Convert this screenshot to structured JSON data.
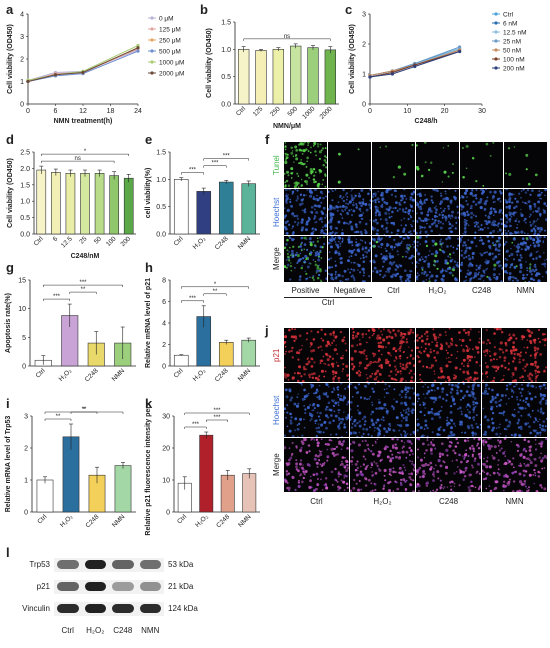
{
  "chart_data": [
    {
      "id": "a",
      "type": "line",
      "letter": "a",
      "xlabel": "NMN treatment(h)",
      "ylabel": "Cell viability (OD450)",
      "xlim": [
        0,
        24
      ],
      "ylim": [
        0,
        4
      ],
      "xticks": [
        "0",
        "6",
        "12",
        "18",
        "24"
      ],
      "yticks": [
        "0",
        "1",
        "2",
        "3",
        "4"
      ],
      "x": [
        0,
        6,
        12,
        24
      ],
      "legend_position": "right",
      "series": [
        {
          "name": "0 μM",
          "color": "#b7b0d9",
          "values": [
            1.05,
            1.4,
            1.45,
            2.4
          ]
        },
        {
          "name": "125 μM",
          "color": "#e3a6a3",
          "values": [
            1.0,
            1.35,
            1.4,
            2.45
          ]
        },
        {
          "name": "250 μM",
          "color": "#e7a65f",
          "values": [
            1.05,
            1.3,
            1.4,
            2.5
          ]
        },
        {
          "name": "500 μM",
          "color": "#6f8fd1",
          "values": [
            1.0,
            1.25,
            1.35,
            2.35
          ]
        },
        {
          "name": "1000 μM",
          "color": "#a9cc76",
          "values": [
            1.05,
            1.3,
            1.45,
            2.6
          ]
        },
        {
          "name": "2000 μM",
          "color": "#6b4a3a",
          "values": [
            1.0,
            1.3,
            1.4,
            2.5
          ]
        }
      ]
    },
    {
      "id": "b",
      "type": "bar",
      "letter": "b",
      "xlabel": "NMN/μM",
      "ylabel": "Cell viability (OD450)",
      "categories": [
        "Ctrl",
        "125",
        "250",
        "500",
        "1000",
        "2000"
      ],
      "values": [
        1.0,
        0.98,
        1.0,
        1.06,
        1.03,
        0.99
      ],
      "errors": [
        0.05,
        0.02,
        0.03,
        0.04,
        0.04,
        0.06
      ],
      "colors": [
        "#f7f3c9",
        "#f5efb5",
        "#ecf0a8",
        "#c7e3a0",
        "#9ccf7c",
        "#6fb34f"
      ],
      "ylim": [
        0,
        1.5
      ],
      "yticks": [
        "0.0",
        "0.5",
        "1.0",
        "1.5"
      ],
      "significance": [
        {
          "from": 0,
          "to": 5,
          "label": "ns"
        }
      ]
    },
    {
      "id": "c",
      "type": "line",
      "letter": "c",
      "xlabel": "C248/h",
      "ylabel": "Cell viability (OD450)",
      "xlim": [
        0,
        30
      ],
      "ylim": [
        0,
        3
      ],
      "xticks": [
        "0",
        "10",
        "20",
        "30"
      ],
      "yticks": [
        "0",
        "1",
        "2",
        "3"
      ],
      "x": [
        0,
        6,
        12,
        24
      ],
      "legend_position": "right",
      "series": [
        {
          "name": "Ctrl",
          "color": "#4aa3d8",
          "values": [
            0.95,
            1.1,
            1.35,
            1.85
          ]
        },
        {
          "name": "6 nM",
          "color": "#2a6fb0",
          "values": [
            0.9,
            1.05,
            1.3,
            1.8
          ]
        },
        {
          "name": "12.5 nM",
          "color": "#8bbde0",
          "values": [
            0.9,
            1.05,
            1.3,
            1.85
          ]
        },
        {
          "name": "25 nM",
          "color": "#6a9bc9",
          "values": [
            0.95,
            1.1,
            1.35,
            1.9
          ]
        },
        {
          "name": "50 nM",
          "color": "#c38a5d",
          "values": [
            0.95,
            1.1,
            1.3,
            1.8
          ]
        },
        {
          "name": "100 nM",
          "color": "#7b3f2a",
          "values": [
            0.9,
            1.05,
            1.3,
            1.75
          ]
        },
        {
          "name": "200 nM",
          "color": "#2f3f7a",
          "values": [
            0.9,
            1.0,
            1.25,
            1.75
          ]
        }
      ]
    },
    {
      "id": "d",
      "type": "bar",
      "letter": "d",
      "xlabel": "C248/nM",
      "ylabel": "Cell viability (OD450)",
      "categories": [
        "Ctrl",
        "6",
        "12.5",
        "25",
        "50",
        "100",
        "200"
      ],
      "values": [
        1.95,
        1.88,
        1.85,
        1.85,
        1.85,
        1.78,
        1.7
      ],
      "errors": [
        0.12,
        0.1,
        0.1,
        0.1,
        0.1,
        0.12,
        0.12
      ],
      "colors": [
        "#f7f3c9",
        "#f2efb4",
        "#e9eea6",
        "#d5e8a0",
        "#b8dc8a",
        "#8fc76a",
        "#5aa847"
      ],
      "ylim": [
        0,
        2.5
      ],
      "yticks": [
        "0.0",
        "0.5",
        "1.0",
        "1.5",
        "2.0",
        "2.5"
      ],
      "significance": [
        {
          "from": 0,
          "to": 6,
          "label": "*"
        },
        {
          "from": 0,
          "to": 5,
          "label": "ns"
        }
      ]
    },
    {
      "id": "e",
      "type": "bar",
      "letter": "e",
      "xlabel": "",
      "ylabel": "cell viability(%)",
      "categories": [
        "Ctrl",
        "H₂O₂",
        "C248",
        "NMN"
      ],
      "values": [
        1.0,
        0.78,
        0.95,
        0.92
      ],
      "errors": [
        0.03,
        0.06,
        0.03,
        0.05
      ],
      "colors": [
        "#ffffff",
        "#2f3f82",
        "#2f7f96",
        "#5bb39a"
      ],
      "ylim": [
        0,
        1.5
      ],
      "yticks": [
        "0.0",
        "0.5",
        "1.0",
        "1.5"
      ],
      "significance": [
        {
          "from": 0,
          "to": 1,
          "label": "***"
        },
        {
          "from": 1,
          "to": 2,
          "label": "***"
        },
        {
          "from": 1,
          "to": 3,
          "label": "***"
        }
      ]
    },
    {
      "id": "g",
      "type": "bar",
      "letter": "g",
      "xlabel": "",
      "ylabel": "Apoptosis rate(%)",
      "categories": [
        "Ctrl",
        "H₂O₂",
        "C248",
        "NMN"
      ],
      "values": [
        1.0,
        8.8,
        4.0,
        4.0
      ],
      "errors": [
        0.8,
        2.0,
        2.0,
        2.8
      ],
      "colors": [
        "#ffffff",
        "#c9a2d6",
        "#e8d96a",
        "#9ccf7c"
      ],
      "ylim": [
        0,
        15
      ],
      "yticks": [
        "0",
        "5",
        "10",
        "15"
      ],
      "significance": [
        {
          "from": 0,
          "to": 1,
          "label": "***"
        },
        {
          "from": 1,
          "to": 2,
          "label": "**"
        },
        {
          "from": 0,
          "to": 3,
          "label": "***"
        }
      ]
    },
    {
      "id": "h",
      "type": "bar",
      "letter": "h",
      "xlabel": "",
      "ylabel": "Relative mRNA level of p21",
      "categories": [
        "Ctrl",
        "H₂O₂",
        "C248",
        "NMN"
      ],
      "values": [
        1.0,
        4.6,
        2.2,
        2.4
      ],
      "errors": [
        0.05,
        1.0,
        0.2,
        0.2
      ],
      "colors": [
        "#ffffff",
        "#2a6f9e",
        "#f2d05a",
        "#a3d7a5"
      ],
      "ylim": [
        0,
        8
      ],
      "yticks": [
        "0",
        "2",
        "4",
        "6",
        "8"
      ],
      "significance": [
        {
          "from": 0,
          "to": 1,
          "label": "***"
        },
        {
          "from": 1,
          "to": 2,
          "label": "**"
        },
        {
          "from": 0,
          "to": 3,
          "label": "*"
        }
      ]
    },
    {
      "id": "i",
      "type": "bar",
      "letter": "i",
      "xlabel": "",
      "ylabel": "Relative mRNA level of Trp53",
      "categories": [
        "Ctrl",
        "H₂O₂",
        "C248",
        "NMN"
      ],
      "values": [
        1.0,
        2.35,
        1.15,
        1.45
      ],
      "errors": [
        0.1,
        0.4,
        0.25,
        0.1
      ],
      "colors": [
        "#ffffff",
        "#2a6f9e",
        "#f2d05a",
        "#a3d7a5"
      ],
      "ylim": [
        0,
        3
      ],
      "yticks": [
        "0",
        "1",
        "2",
        "3"
      ],
      "significance": [
        {
          "from": 0,
          "to": 1,
          "label": "**"
        },
        {
          "from": 1,
          "to": 2,
          "label": "**"
        },
        {
          "from": 0,
          "to": 3,
          "label": "*"
        }
      ]
    },
    {
      "id": "k",
      "type": "bar",
      "letter": "k",
      "xlabel": "",
      "ylabel": "Relative p21 fluorescence intensity per cell",
      "categories": [
        "Ctrl",
        "H₂O₂",
        "C248",
        "NMN"
      ],
      "values": [
        9.0,
        24.0,
        11.5,
        12.0
      ],
      "errors": [
        2.0,
        1.0,
        1.5,
        1.5
      ],
      "colors": [
        "#ffffff",
        "#b0202a",
        "#e0a08a",
        "#e6c3b6"
      ],
      "ylim": [
        0,
        30
      ],
      "yticks": [
        "0",
        "10",
        "20",
        "30"
      ],
      "significance": [
        {
          "from": 0,
          "to": 1,
          "label": "***"
        },
        {
          "from": 1,
          "to": 2,
          "label": "***"
        },
        {
          "from": 0,
          "to": 3,
          "label": "***"
        }
      ]
    }
  ],
  "panel_f": {
    "letter": "f",
    "rows": [
      "Tunel",
      "Hoechst",
      "Merge"
    ],
    "row_colors": [
      "#3fb54a",
      "#3b6ed4",
      "#222222"
    ],
    "columns": [
      "Positive",
      "Negative",
      "Ctrl",
      "H₂O₂",
      "C248",
      "NMN"
    ],
    "group_label": "Ctrl"
  },
  "panel_j": {
    "letter": "j",
    "rows": [
      "p21",
      "Hoechst",
      "Merge"
    ],
    "row_colors": [
      "#c0282f",
      "#3b6ed4",
      "#222222"
    ],
    "columns": [
      "Ctrl",
      "H₂O₂",
      "C248",
      "NMN"
    ]
  },
  "panel_l": {
    "letter": "l",
    "proteins": [
      "Trp53",
      "p21",
      "Vinculin"
    ],
    "sizes": [
      "53 kDa",
      "21 kDa",
      "124 kDa"
    ],
    "lanes": [
      "Ctrl",
      "H₂O₂",
      "C248",
      "NMN"
    ],
    "intensities": [
      [
        0.55,
        0.9,
        0.6,
        0.55
      ],
      [
        0.6,
        0.9,
        0.35,
        0.4
      ],
      [
        0.85,
        0.9,
        0.85,
        0.85
      ]
    ]
  }
}
